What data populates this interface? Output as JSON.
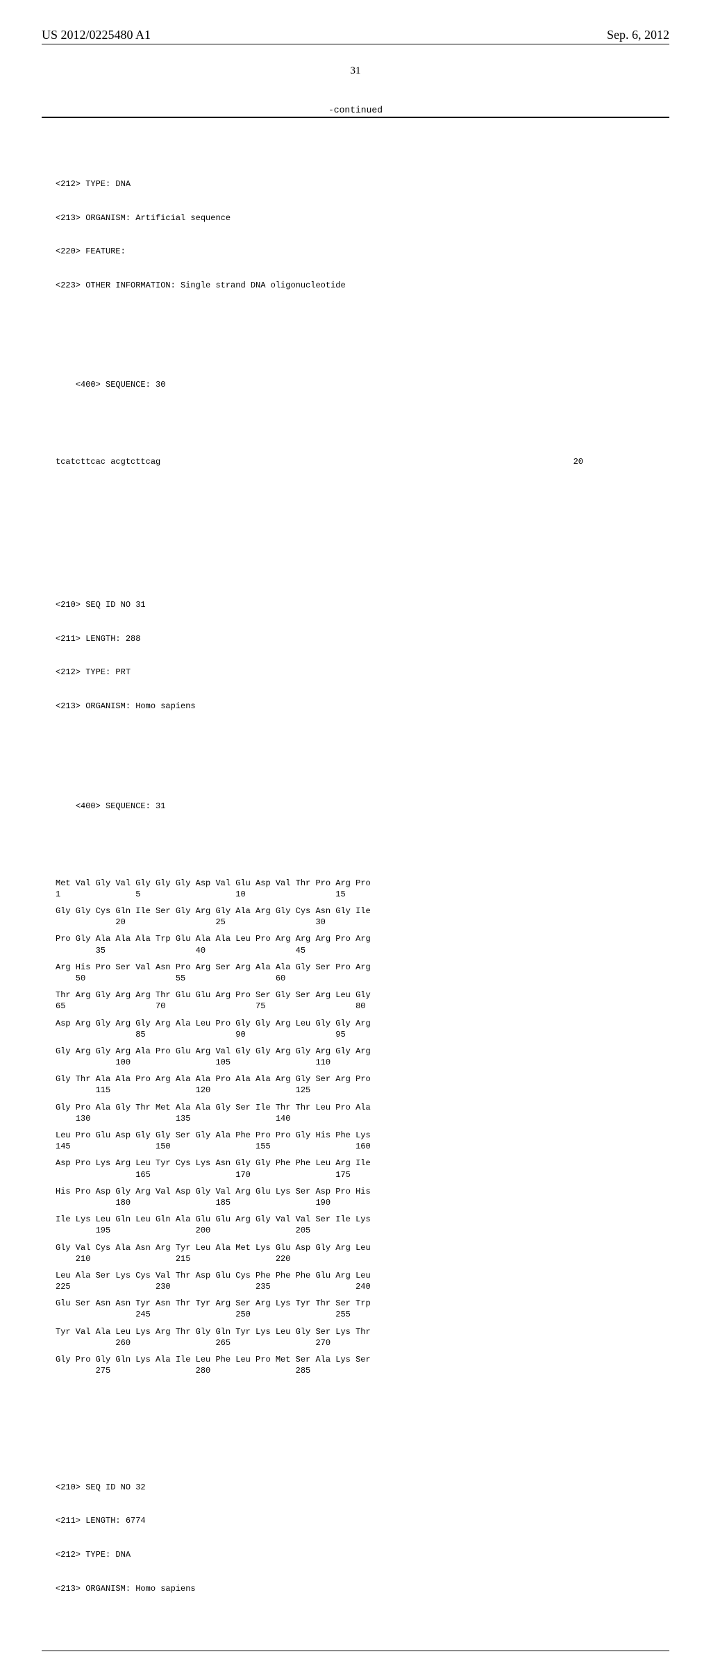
{
  "header": {
    "doc_number": "US 2012/0225480 A1",
    "date": "Sep. 6, 2012"
  },
  "page_number": "31",
  "continued_label": "-continued",
  "meta_block_top": [
    "<212> TYPE: DNA",
    "<213> ORGANISM: Artificial sequence",
    "<220> FEATURE:",
    "<223> OTHER INFORMATION: Single strand DNA oligonucleotide"
  ],
  "seq30": {
    "header": "<400> SEQUENCE: 30",
    "oligo": "tcatcttcac acgtcttcag",
    "length_label": "20"
  },
  "meta_block_31": [
    "<210> SEQ ID NO 31",
    "<211> LENGTH: 288",
    "<212> TYPE: PRT",
    "<213> ORGANISM: Homo sapiens"
  ],
  "seq31": {
    "header": "<400> SEQUENCE: 31",
    "rows": [
      {
        "aa": "Met Val Gly Val Gly Gly Gly Asp Val Glu Asp Val Thr Pro Arg Pro",
        "pos": "1               5                   10                  15"
      },
      {
        "aa": "Gly Gly Cys Gln Ile Ser Gly Arg Gly Ala Arg Gly Cys Asn Gly Ile",
        "pos": "            20                  25                  30"
      },
      {
        "aa": "Pro Gly Ala Ala Ala Trp Glu Ala Ala Leu Pro Arg Arg Arg Pro Arg",
        "pos": "        35                  40                  45"
      },
      {
        "aa": "Arg His Pro Ser Val Asn Pro Arg Ser Arg Ala Ala Gly Ser Pro Arg",
        "pos": "    50                  55                  60"
      },
      {
        "aa": "Thr Arg Gly Arg Arg Thr Glu Glu Arg Pro Ser Gly Ser Arg Leu Gly",
        "pos": "65                  70                  75                  80"
      },
      {
        "aa": "Asp Arg Gly Arg Gly Arg Ala Leu Pro Gly Gly Arg Leu Gly Gly Arg",
        "pos": "                85                  90                  95"
      },
      {
        "aa": "Gly Arg Gly Arg Ala Pro Glu Arg Val Gly Gly Arg Gly Arg Gly Arg",
        "pos": "            100                 105                 110"
      },
      {
        "aa": "Gly Thr Ala Ala Pro Arg Ala Ala Pro Ala Ala Arg Gly Ser Arg Pro",
        "pos": "        115                 120                 125"
      },
      {
        "aa": "Gly Pro Ala Gly Thr Met Ala Ala Gly Ser Ile Thr Thr Leu Pro Ala",
        "pos": "    130                 135                 140"
      },
      {
        "aa": "Leu Pro Glu Asp Gly Gly Ser Gly Ala Phe Pro Pro Gly His Phe Lys",
        "pos": "145                 150                 155                 160"
      },
      {
        "aa": "Asp Pro Lys Arg Leu Tyr Cys Lys Asn Gly Gly Phe Phe Leu Arg Ile",
        "pos": "                165                 170                 175"
      },
      {
        "aa": "His Pro Asp Gly Arg Val Asp Gly Val Arg Glu Lys Ser Asp Pro His",
        "pos": "            180                 185                 190"
      },
      {
        "aa": "Ile Lys Leu Gln Leu Gln Ala Glu Glu Arg Gly Val Val Ser Ile Lys",
        "pos": "        195                 200                 205"
      },
      {
        "aa": "Gly Val Cys Ala Asn Arg Tyr Leu Ala Met Lys Glu Asp Gly Arg Leu",
        "pos": "    210                 215                 220"
      },
      {
        "aa": "Leu Ala Ser Lys Cys Val Thr Asp Glu Cys Phe Phe Phe Glu Arg Leu",
        "pos": "225                 230                 235                 240"
      },
      {
        "aa": "Glu Ser Asn Asn Tyr Asn Thr Tyr Arg Ser Arg Lys Tyr Thr Ser Trp",
        "pos": "                245                 250                 255"
      },
      {
        "aa": "Tyr Val Ala Leu Lys Arg Thr Gly Gln Tyr Lys Leu Gly Ser Lys Thr",
        "pos": "            260                 265                 270"
      },
      {
        "aa": "Gly Pro Gly Gln Lys Ala Ile Leu Phe Leu Pro Met Ser Ala Lys Ser",
        "pos": "        275                 280                 285"
      }
    ]
  },
  "meta_block_32": [
    "<210> SEQ ID NO 32",
    "<211> LENGTH: 6774",
    "<212> TYPE: DNA",
    "<213> ORGANISM: Homo sapiens"
  ]
}
